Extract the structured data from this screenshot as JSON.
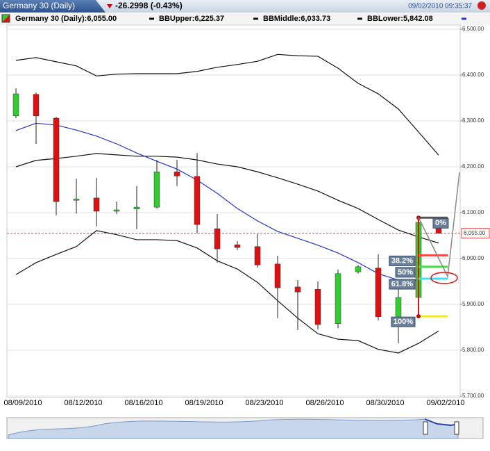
{
  "header": {
    "tab_title": "Germany 30 (Daily)",
    "change": "-26.2998 (-0.43%)",
    "timestamp": "09/02/2010 09:35:37"
  },
  "chart_data": {
    "type": "candlestick",
    "categories": [
      "08/09/2010",
      null,
      null,
      "08/12/2010",
      null,
      null,
      "08/16/2010",
      null,
      null,
      "08/19/2010",
      null,
      null,
      "08/23/2010",
      null,
      null,
      "08/26/2010",
      null,
      null,
      "08/30/2010",
      null,
      null,
      "09/02/2010"
    ],
    "name": "Germany 30 (Daily):6,055.00",
    "open": [
      6311,
      6358,
      6306,
      6127,
      6132,
      6103,
      6108,
      6112,
      6189,
      6179,
      6065,
      6030,
      6026,
      5988,
      5938,
      5933,
      5858,
      5971,
      5979,
      5864,
      5915,
      6067
    ],
    "high": [
      6371,
      6362,
      6309,
      6174,
      6176,
      6124,
      6158,
      6215,
      6215,
      6230,
      6097,
      6038,
      6053,
      6006,
      5953,
      5950,
      5976,
      5986,
      6009,
      5942,
      6089,
      6079
    ],
    "low": [
      6306,
      6250,
      6094,
      6098,
      6070,
      6097,
      6064,
      6109,
      6158,
      6055,
      5991,
      6018,
      5980,
      5870,
      5844,
      5845,
      5848,
      5967,
      5865,
      5815,
      5912,
      6055
    ],
    "close": [
      6359,
      6311,
      6124,
      6130,
      6103,
      6106,
      6112,
      6189,
      6180,
      6074,
      6021,
      6024,
      5986,
      5936,
      5927,
      5856,
      5967,
      5982,
      5873,
      5915,
      6079,
      6055
    ],
    "up_color": "#33cc33",
    "down_color": "#dd1111",
    "series": [
      {
        "name": "BBUpper:6,225.37",
        "color": "#111111",
        "values": [
          6432,
          6438,
          6429,
          6420,
          6398,
          6402,
          6403,
          6403,
          6403,
          6408,
          6417,
          6423,
          6430,
          6445,
          6442,
          6441,
          6415,
          6382,
          6359,
          6326,
          6276,
          6225.37
        ]
      },
      {
        "name": "BBMiddle:6,033.73",
        "color": "#111111",
        "values": [
          6200,
          6214,
          6218,
          6223,
          6229,
          6226,
          6223,
          6223,
          6221,
          6215,
          6206,
          6200,
          6189,
          6176,
          6162,
          6147,
          6127,
          6109,
          6085,
          6062,
          6047,
          6033.73
        ]
      },
      {
        "name": "BBLower:5,842.08",
        "color": "#111111",
        "values": [
          5965,
          5991,
          6009,
          6026,
          6061,
          6052,
          6041,
          6041,
          6039,
          6023,
          5995,
          5977,
          5948,
          5908,
          5870,
          5836,
          5824,
          5821,
          5802,
          5794,
          5815,
          5842.08
        ]
      },
      {
        "color": "#2233cc",
        "values": [
          6279,
          6295,
          6291,
          6280,
          6267,
          6250,
          6230,
          6212,
          6195,
          6171,
          6142,
          6109,
          6082,
          6059,
          6044,
          6029,
          6012,
          5991,
          5967,
          5953,
          5952,
          null
        ]
      }
    ],
    "last_price": {
      "value": 6055,
      "label": "6,055.00"
    },
    "fib_levels": [
      {
        "value": 6089,
        "label": "0%",
        "color": "#555555"
      },
      {
        "value": 6007,
        "label": "38.2%",
        "color": "#ff4444"
      },
      {
        "value": 5982,
        "label": "50%",
        "color": "#44dd44"
      },
      {
        "value": 5956,
        "label": "61.8%",
        "color": "#44ddee"
      },
      {
        "value": 5874,
        "label": "100%",
        "color": "#eeee22"
      }
    ],
    "ylim": [
      5700,
      6500
    ],
    "yticks": [
      {
        "value": 5700,
        "label": "5,700.00"
      },
      {
        "value": 5800,
        "label": "5,800.00"
      },
      {
        "value": 5900,
        "label": "5,900.00"
      },
      {
        "value": 6000,
        "label": "6,000.00"
      },
      {
        "value": 6100,
        "label": "6,100.00"
      },
      {
        "value": 6200,
        "label": "6,200.00"
      },
      {
        "value": 6300,
        "label": "6,300.00"
      },
      {
        "value": 6400,
        "label": "6,400.00"
      },
      {
        "value": 6500,
        "label": "6,500.00"
      }
    ],
    "grid": true
  }
}
